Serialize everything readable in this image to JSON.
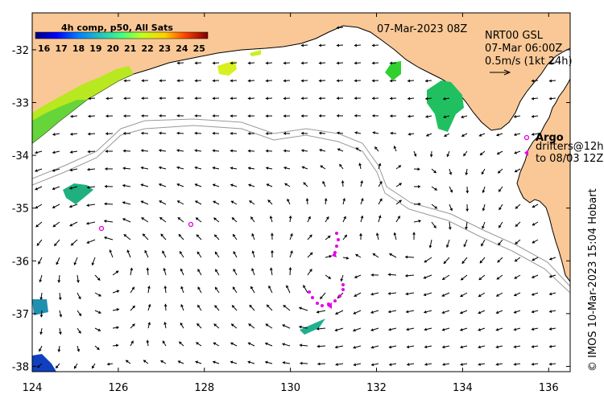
{
  "map": {
    "x_ticks": [
      "124",
      "126",
      "128",
      "130",
      "132",
      "134",
      "136"
    ],
    "y_ticks": [
      "-32",
      "-33",
      "-34",
      "-35",
      "-36",
      "-37",
      "-38"
    ],
    "lon_range": [
      124,
      136.5
    ],
    "lat_range": [
      -38.1,
      -31.3
    ],
    "timestamp": "07-Mar-2023 08Z",
    "product_line1": "NRT00 GSL",
    "product_line2": "07-Mar 06:00Z",
    "scale_label": "0.5m/s (1kt 24h)",
    "legend_argo": "Argo",
    "legend_drifters_1": "drifters@12h",
    "legend_drifters_2": "to 08/03 12Z",
    "credit": "© IMOS 10-Mar-2023 15:04 Hobart",
    "colorbar": {
      "title": "4h comp, p50, All Sats",
      "labels": [
        "16",
        "17",
        "18",
        "19",
        "20",
        "21",
        "22",
        "23",
        "24",
        "25"
      ],
      "range": [
        15.5,
        25.5
      ]
    },
    "colors": {
      "land": "#f9c896",
      "ocean": "#ffffff",
      "argo": "#e400e4",
      "drifter": "#e400e4",
      "arrow": "#000000",
      "isobath": "#999999"
    }
  }
}
